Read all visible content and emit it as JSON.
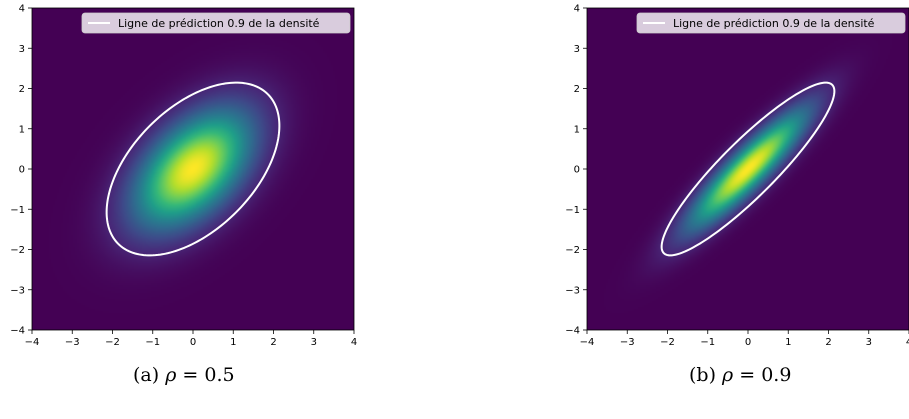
{
  "chart_data": [
    {
      "type": "heatmap",
      "rho": 0.5,
      "xlim": [
        -4,
        4
      ],
      "ylim": [
        -4,
        4
      ],
      "xticks": [
        "−4",
        "−3",
        "−2",
        "−1",
        "0",
        "1",
        "2",
        "3",
        "4"
      ],
      "yticks": [
        "−4",
        "−3",
        "−2",
        "−1",
        "0",
        "1",
        "2",
        "3",
        "4"
      ],
      "colormap": "viridis",
      "contour_level": 0.9,
      "contour_color": "#ffffff",
      "legend": {
        "label": "Ligne de prédiction 0.9 de la densité",
        "position": "top-right"
      },
      "caption": {
        "tag": "(a)",
        "symbol": "ρ",
        "equation": " = 0.5"
      }
    },
    {
      "type": "heatmap",
      "rho": 0.9,
      "xlim": [
        -4,
        4
      ],
      "ylim": [
        -4,
        4
      ],
      "xticks": [
        "−4",
        "−3",
        "−2",
        "−1",
        "0",
        "1",
        "2",
        "3",
        "4"
      ],
      "yticks": [
        "−4",
        "−3",
        "−2",
        "−1",
        "0",
        "1",
        "2",
        "3",
        "4"
      ],
      "colormap": "viridis",
      "contour_level": 0.9,
      "contour_color": "#ffffff",
      "legend": {
        "label": "Ligne de prédiction 0.9 de la densité",
        "position": "top-right"
      },
      "caption": {
        "tag": "(b)",
        "symbol": "ρ",
        "equation": " = 0.9"
      }
    }
  ]
}
